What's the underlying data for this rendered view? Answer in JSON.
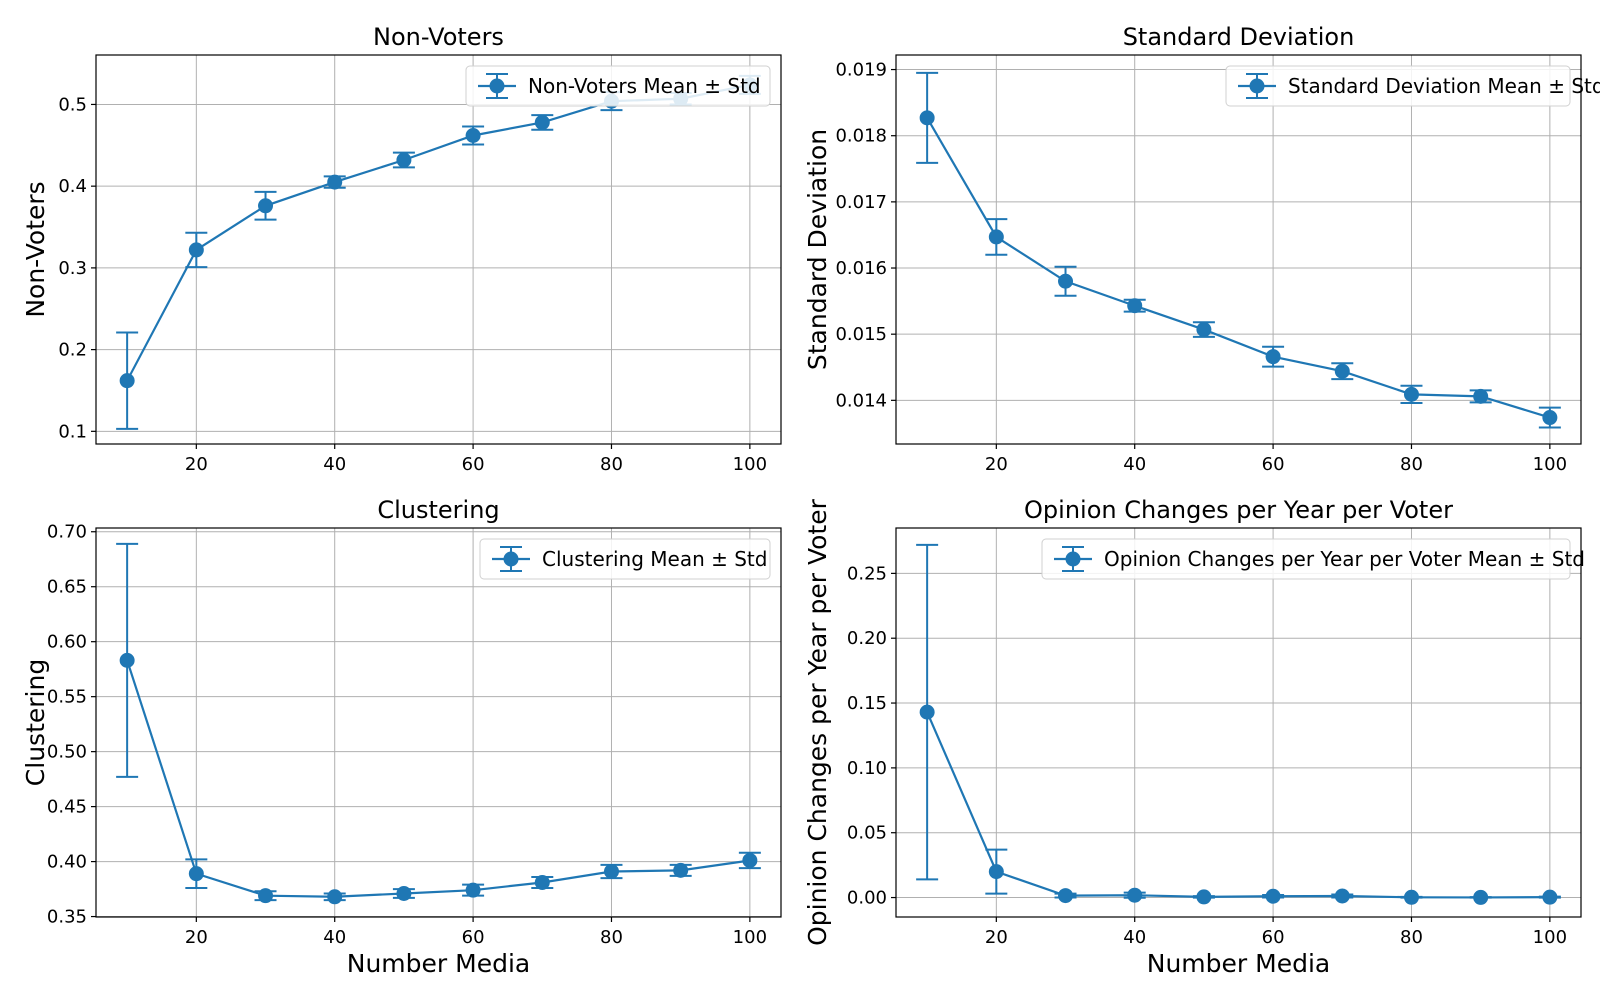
{
  "charts": [
    {
      "id": "nonvoters",
      "type": "line",
      "title": "Non-Voters",
      "xlabel": "",
      "ylabel": "Non-Voters",
      "xlim": [
        5.5,
        104.5
      ],
      "ylim": [
        0.0845,
        0.5605
      ],
      "xticks": [
        20,
        40,
        60,
        80,
        100
      ],
      "xtick_labels": [
        "20",
        "40",
        "60",
        "80",
        "100"
      ],
      "yticks": [
        0.1,
        0.2,
        0.3,
        0.4,
        0.5
      ],
      "ytick_labels": [
        "0.1",
        "0.2",
        "0.3",
        "0.4",
        "0.5"
      ],
      "grid": true,
      "legend": "top-right",
      "series": [
        {
          "name": "Non-Voters Mean ± Std",
          "color": "#1f77b4",
          "x": [
            10,
            20,
            30,
            40,
            50,
            60,
            70,
            80,
            90,
            100
          ],
          "y": [
            0.162,
            0.322,
            0.376,
            0.405,
            0.432,
            0.462,
            0.478,
            0.504,
            0.507,
            0.524
          ],
          "err": [
            0.059,
            0.021,
            0.017,
            0.007,
            0.009,
            0.011,
            0.009,
            0.011,
            0.007,
            0.011
          ]
        }
      ]
    },
    {
      "id": "stddev",
      "type": "line",
      "title": "Standard Deviation",
      "xlabel": "",
      "ylabel": "Standard Deviation",
      "xlim": [
        5.5,
        104.5
      ],
      "ylim": [
        0.01334,
        0.01922
      ],
      "xticks": [
        20,
        40,
        60,
        80,
        100
      ],
      "xtick_labels": [
        "20",
        "40",
        "60",
        "80",
        "100"
      ],
      "yticks": [
        0.014,
        0.015,
        0.016,
        0.017,
        0.018,
        0.019
      ],
      "ytick_labels": [
        "0.014",
        "0.015",
        "0.016",
        "0.017",
        "0.018",
        "0.019"
      ],
      "grid": true,
      "legend": "top-right",
      "series": [
        {
          "name": "Standard Deviation Mean ± Std",
          "color": "#1f77b4",
          "x": [
            10,
            20,
            30,
            40,
            50,
            60,
            70,
            80,
            90,
            100
          ],
          "y": [
            0.01827,
            0.01647,
            0.0158,
            0.01543,
            0.01507,
            0.01466,
            0.01444,
            0.01409,
            0.01406,
            0.01374
          ],
          "err": [
            0.00068,
            0.00027,
            0.00022,
            9e-05,
            0.00011,
            0.00015,
            0.00012,
            0.00013,
            9e-05,
            0.00015
          ]
        }
      ]
    },
    {
      "id": "clustering",
      "type": "line",
      "title": "Clustering",
      "xlabel": "Number Media",
      "ylabel": "Clustering",
      "xlim": [
        5.5,
        104.5
      ],
      "ylim": [
        0.3496,
        0.7034
      ],
      "xticks": [
        20,
        40,
        60,
        80,
        100
      ],
      "xtick_labels": [
        "20",
        "40",
        "60",
        "80",
        "100"
      ],
      "yticks": [
        0.35,
        0.4,
        0.45,
        0.5,
        0.55,
        0.6,
        0.65,
        0.7
      ],
      "ytick_labels": [
        "0.35",
        "0.40",
        "0.45",
        "0.50",
        "0.55",
        "0.60",
        "0.65",
        "0.70"
      ],
      "grid": true,
      "legend": "top-right",
      "series": [
        {
          "name": "Clustering Mean ± Std",
          "color": "#1f77b4",
          "x": [
            10,
            20,
            30,
            40,
            50,
            60,
            70,
            80,
            90,
            100
          ],
          "y": [
            0.583,
            0.389,
            0.369,
            0.368,
            0.371,
            0.374,
            0.381,
            0.391,
            0.392,
            0.401
          ],
          "err": [
            0.106,
            0.013,
            0.004,
            0.003,
            0.004,
            0.005,
            0.005,
            0.006,
            0.005,
            0.007
          ]
        }
      ]
    },
    {
      "id": "opinion",
      "type": "line",
      "title": "Opinion Changes per Year per Voter",
      "xlabel": "Number Media",
      "ylabel": "Opinion Changes per Year per Voter",
      "xlim": [
        5.5,
        104.5
      ],
      "ylim": [
        -0.015,
        0.285
      ],
      "xticks": [
        20,
        40,
        60,
        80,
        100
      ],
      "xtick_labels": [
        "20",
        "40",
        "60",
        "80",
        "100"
      ],
      "yticks": [
        0.0,
        0.05,
        0.1,
        0.15,
        0.2,
        0.25
      ],
      "ytick_labels": [
        "0.00",
        "0.05",
        "0.10",
        "0.15",
        "0.20",
        "0.25"
      ],
      "grid": true,
      "legend": "top-right",
      "series": [
        {
          "name": "Opinion Changes per Year per Voter Mean ± Std",
          "color": "#1f77b4",
          "x": [
            10,
            20,
            30,
            40,
            50,
            60,
            70,
            80,
            90,
            100
          ],
          "y": [
            0.143,
            0.02,
            0.0015,
            0.0018,
            0.0005,
            0.001,
            0.0012,
            0.0002,
            0.0001,
            0.0003
          ],
          "err": [
            0.129,
            0.017,
            0.0015,
            0.002,
            0.0006,
            0.001,
            0.0012,
            0.0003,
            0.0002,
            0.0004
          ]
        }
      ]
    }
  ]
}
